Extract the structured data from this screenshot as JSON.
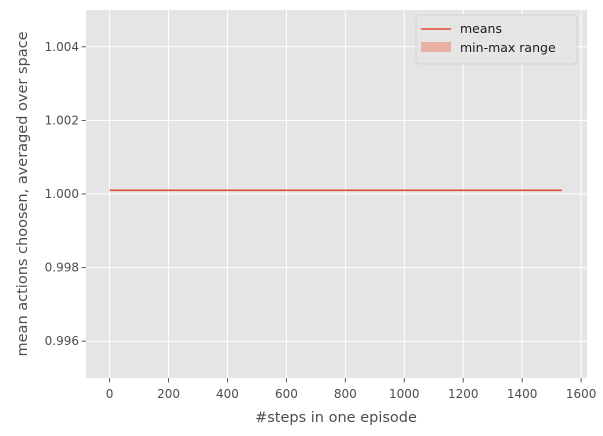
{
  "chart_data": {
    "type": "line",
    "title": "",
    "xlabel": "#steps in one episode",
    "ylabel": "mean actions choosen, averaged over space",
    "xlim": [
      -80,
      1620
    ],
    "ylim": [
      0.995,
      1.005
    ],
    "x_ticks": [
      0,
      200,
      400,
      600,
      800,
      1000,
      1200,
      1400,
      1600
    ],
    "x_tick_labels": [
      "0",
      "200",
      "400",
      "600",
      "800",
      "1000",
      "1200",
      "1400",
      "1600"
    ],
    "y_ticks": [
      0.996,
      0.998,
      1.0,
      1.002,
      1.004
    ],
    "y_tick_labels": [
      "0.996",
      "0.998",
      "1.000",
      "1.002",
      "1.004"
    ],
    "grid": true,
    "legend_position": "top-right",
    "series": [
      {
        "name": "means",
        "kind": "line",
        "color": "#E24A33",
        "x": [
          0,
          1535
        ],
        "y": [
          1.0001,
          1.0001
        ]
      },
      {
        "name": "min-max range",
        "kind": "band",
        "color": "#E8A89C",
        "x": [
          0,
          1535
        ],
        "y_min": [
          1.0001,
          1.0001
        ],
        "y_max": [
          1.0001,
          1.0001
        ]
      }
    ],
    "colors": {
      "panel_background": "#E5E5E5",
      "grid": "#FFFFFF",
      "text": "#4D4D4D"
    }
  }
}
